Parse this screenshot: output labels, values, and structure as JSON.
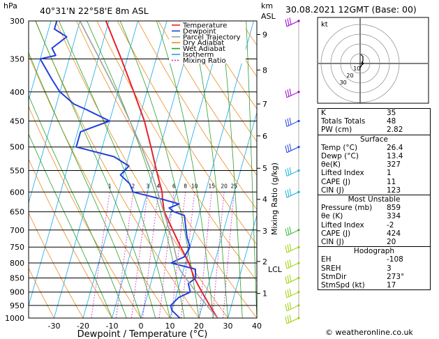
{
  "header": {
    "unit_pressure": "hPa",
    "location": "40°31'N  22°58'E  8m  ASL",
    "unit_km": "km",
    "unit_asl": "ASL",
    "date": "30.08.2021  12GMT  (Base: 00)"
  },
  "legend": {
    "items": [
      {
        "label": "Temperature",
        "color": "#e8202a",
        "dash": ""
      },
      {
        "label": "Dewpoint",
        "color": "#1f3fe0",
        "dash": ""
      },
      {
        "label": "Parcel Trajectory",
        "color": "#a0a0a0",
        "dash": ""
      },
      {
        "label": "Dry Adiabat",
        "color": "#f08a1e",
        "dash": ""
      },
      {
        "label": "Wet Adiabat",
        "color": "#2aa02a",
        "dash": ""
      },
      {
        "label": "Isotherm",
        "color": "#14a8e8",
        "dash": ""
      },
      {
        "label": "Mixing Ratio",
        "color": "#d02ad0",
        "dash": "2,2"
      }
    ]
  },
  "axes": {
    "xlabel": "Dewpoint / Temperature (°C)",
    "ylabel_right": "Mixing Ratio (g/kg)",
    "lcl_label": "LCL"
  },
  "chart_data": {
    "type": "line",
    "title": "",
    "xlabel": "Dewpoint / Temperature (°C)",
    "ylabel": "hPa",
    "xlim": [
      -35,
      40
    ],
    "ylim": [
      1000,
      300
    ],
    "y_scale": "log",
    "x_ticks": [
      -30,
      -20,
      -10,
      0,
      10,
      20,
      30,
      40
    ],
    "pressure_ticks": [
      300,
      350,
      400,
      450,
      500,
      550,
      600,
      650,
      700,
      750,
      800,
      850,
      900,
      950,
      1000
    ],
    "height_ticks": [
      {
        "km": 1,
        "p": 905
      },
      {
        "km": 2,
        "p": 795
      },
      {
        "km": 3,
        "p": 702
      },
      {
        "km": 4,
        "p": 618
      },
      {
        "km": 5,
        "p": 545
      },
      {
        "km": 6,
        "p": 478
      },
      {
        "km": 7,
        "p": 420
      },
      {
        "km": 8,
        "p": 366
      },
      {
        "km": 9,
        "p": 317
      }
    ],
    "lcl_pressure": 820,
    "mixing_ratio_labels": [
      "1",
      "2",
      "3",
      "4",
      "6",
      "8",
      "10",
      "15",
      "20",
      "25"
    ],
    "mixing_ratio_values": [
      1,
      2,
      3,
      4,
      6,
      8,
      10,
      15,
      20,
      25
    ],
    "series": [
      {
        "name": "Temperature",
        "p": [
          1000,
          950,
          900,
          850,
          800,
          780,
          750,
          700,
          650,
          620,
          600,
          550,
          500,
          450,
          400,
          350,
          300
        ],
        "t": [
          26.4,
          22.5,
          18.5,
          14.5,
          11.2,
          9.5,
          6.8,
          2.4,
          -2.3,
          -4.0,
          -5.0,
          -9.0,
          -13.2,
          -18.0,
          -24.5,
          -32.0,
          -41.0
        ]
      },
      {
        "name": "Dewpoint",
        "p": [
          1000,
          970,
          950,
          920,
          900,
          870,
          850,
          820,
          800,
          780,
          750,
          720,
          700,
          660,
          650,
          640,
          630,
          620,
          600,
          580,
          560,
          550,
          540,
          520,
          500,
          470,
          450,
          430,
          420,
          400,
          380,
          350,
          345,
          335,
          320,
          310,
          300
        ],
        "t": [
          13.4,
          10.0,
          9.0,
          11.0,
          14.5,
          13.0,
          15.0,
          14.0,
          5.0,
          9.0,
          10.0,
          8.0,
          7.0,
          5.0,
          1.0,
          -1.0,
          2.0,
          -3.0,
          -15.0,
          -17.0,
          -21.0,
          -20.0,
          -19.0,
          -25.0,
          -39.0,
          -39.0,
          -30.0,
          -39.0,
          -44.0,
          -50.0,
          -54.0,
          -60.0,
          -55.0,
          -57.0,
          -53.0,
          -58.0,
          -58.0
        ]
      },
      {
        "name": "Parcel Trajectory",
        "p": [
          1000,
          950,
          900,
          850,
          820,
          800,
          750,
          700,
          650,
          600,
          550,
          500,
          450,
          400,
          350,
          300
        ],
        "t": [
          26.4,
          21.5,
          16.5,
          11.5,
          8.5,
          7.3,
          4.5,
          1.2,
          -2.5,
          -6.5,
          -11.0,
          -16.5,
          -23.0,
          -30.5,
          -39.5,
          -50.0
        ]
      }
    ]
  },
  "winds": {
    "pressures": [
      1000,
      950,
      900,
      850,
      800,
      750,
      700,
      600,
      550,
      500,
      450,
      400,
      300
    ],
    "color_levels": [
      "#9bd000",
      "#9bd000",
      "#9bd000",
      "#9bd000",
      "#9bd000",
      "#9bd000",
      "#2fb82f",
      "#14b0e0",
      "#14b0e0",
      "#1f3fe0",
      "#1f3fe0",
      "#9a00c8",
      "#9a00c8"
    ]
  },
  "hodograph": {
    "unit_label": "kt",
    "ring_labels": [
      "10",
      "20",
      "30"
    ]
  },
  "indices": {
    "top": [
      {
        "label": "K",
        "value": "35"
      },
      {
        "label": "Totals Totals",
        "value": "48"
      },
      {
        "label": "PW (cm)",
        "value": "2.82"
      }
    ],
    "surface_title": "Surface",
    "surface": [
      {
        "label": "Temp (°C)",
        "value": "26.4"
      },
      {
        "label": "Dewp (°C)",
        "value": "13.4"
      },
      {
        "label": "θe(K)",
        "value": "327"
      },
      {
        "label": "Lifted Index",
        "value": "1"
      },
      {
        "label": "CAPE (J)",
        "value": "11"
      },
      {
        "label": "CIN (J)",
        "value": "123"
      }
    ],
    "unstable_title": "Most Unstable",
    "unstable": [
      {
        "label": "Pressure (mb)",
        "value": "859"
      },
      {
        "label": "θe (K)",
        "value": "334"
      },
      {
        "label": "Lifted Index",
        "value": "-2"
      },
      {
        "label": "CAPE (J)",
        "value": "424"
      },
      {
        "label": "CIN (J)",
        "value": "20"
      }
    ],
    "hodograph_title": "Hodograph",
    "hodo": [
      {
        "label": "EH",
        "value": "-108"
      },
      {
        "label": "SREH",
        "value": "3"
      },
      {
        "label": "StmDir",
        "value": "273°"
      },
      {
        "label": "StmSpd (kt)",
        "value": "17"
      }
    ]
  },
  "footer": {
    "credit": "© weatheronline.co.uk"
  }
}
